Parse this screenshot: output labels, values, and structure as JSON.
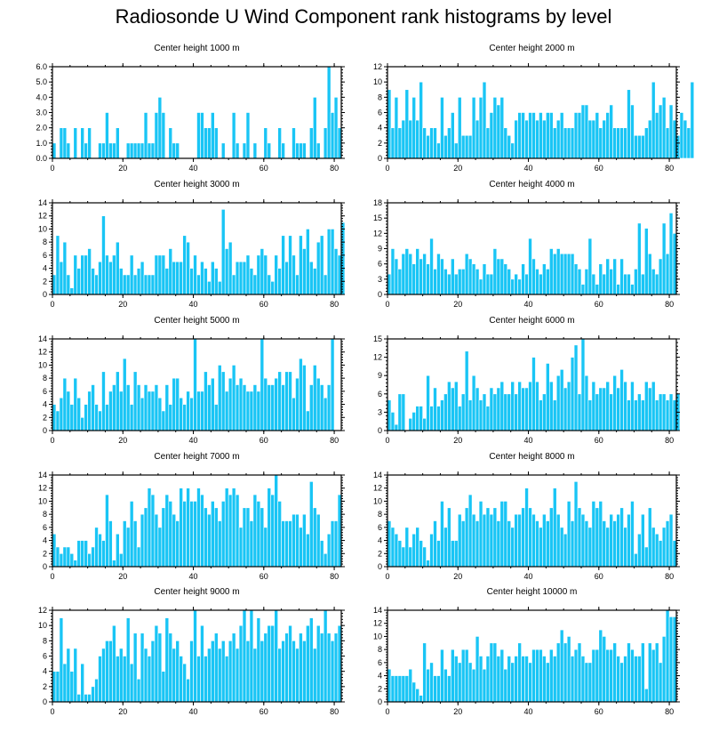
{
  "title": "Radiosonde U Wind Component rank histograms by level",
  "colors": {
    "bar": "#19c5f5",
    "axis": "#000000",
    "background": "#ffffff"
  },
  "chart_data": [
    {
      "type": "bar",
      "title": "Center height 1000 m",
      "xlim": [
        0,
        82
      ],
      "ylim": [
        0,
        6
      ],
      "yticks": [
        0,
        1,
        2,
        3,
        4,
        5,
        6
      ],
      "ytick_labels": [
        "0.0",
        "1.0",
        "2.0",
        "3.0",
        "4.0",
        "5.0",
        "6.0"
      ],
      "xticks": [
        0,
        20,
        40,
        60,
        80
      ],
      "xtick_labels": [
        "0",
        "20",
        "40",
        "60",
        "80"
      ],
      "values": [
        1,
        0,
        2,
        2,
        1,
        0,
        2,
        0,
        2,
        1,
        2,
        0,
        0,
        1,
        1,
        3,
        1,
        1,
        2,
        0,
        0,
        1,
        1,
        1,
        1,
        1,
        3,
        1,
        1,
        3,
        4,
        3,
        0,
        2,
        1,
        1,
        0,
        0,
        0,
        0,
        0,
        3,
        3,
        2,
        2,
        3,
        2,
        0,
        1,
        0,
        0,
        3,
        1,
        0,
        1,
        3,
        0,
        1,
        0,
        0,
        2,
        1,
        0,
        0,
        2,
        1,
        0,
        0,
        2,
        1,
        1,
        1,
        0,
        2,
        4,
        1,
        0,
        2,
        6,
        3,
        4,
        2
      ]
    },
    {
      "type": "bar",
      "title": "Center height 2000 m",
      "xlim": [
        0,
        82
      ],
      "ylim": [
        0,
        12
      ],
      "yticks": [
        0,
        2,
        4,
        6,
        8,
        10,
        12
      ],
      "ytick_labels": [
        "0",
        "2",
        "4",
        "6",
        "8",
        "10",
        "12"
      ],
      "xticks": [
        0,
        20,
        40,
        60,
        80
      ],
      "xtick_labels": [
        "0",
        "20",
        "40",
        "60",
        "80"
      ],
      "values": [
        9,
        4,
        8,
        4,
        5,
        9,
        5,
        8,
        5,
        10,
        4,
        3,
        4,
        4,
        2,
        8,
        3,
        4,
        6,
        2,
        8,
        3,
        3,
        3,
        8,
        5,
        8,
        10,
        4,
        6,
        8,
        7,
        8,
        4,
        3,
        2,
        5,
        6,
        6,
        5,
        6,
        6,
        5,
        6,
        5,
        6,
        6,
        4,
        5,
        6,
        4,
        4,
        4,
        6,
        6,
        7,
        7,
        5,
        5,
        6,
        4,
        5,
        6,
        7,
        4,
        4,
        4,
        4,
        9,
        7,
        3,
        3,
        3,
        4,
        5,
        10,
        6,
        7,
        8,
        4,
        7,
        5,
        3,
        6,
        5,
        4,
        10
      ]
    },
    {
      "type": "bar",
      "title": "Center height 3000 m",
      "xlim": [
        0,
        82
      ],
      "ylim": [
        0,
        14
      ],
      "yticks": [
        0,
        2,
        4,
        6,
        8,
        10,
        12,
        14
      ],
      "ytick_labels": [
        "0",
        "2",
        "4",
        "6",
        "8",
        "10",
        "12",
        "14"
      ],
      "xticks": [
        0,
        20,
        40,
        60,
        80
      ],
      "xtick_labels": [
        "0",
        "20",
        "40",
        "60",
        "80"
      ],
      "values": [
        3,
        9,
        5,
        8,
        3,
        1,
        6,
        4,
        6,
        6,
        7,
        4,
        3,
        5,
        12,
        6,
        5,
        6,
        8,
        4,
        3,
        3,
        6,
        3,
        4,
        5,
        3,
        3,
        3,
        6,
        6,
        6,
        4,
        7,
        5,
        5,
        5,
        9,
        8,
        4,
        6,
        3,
        5,
        4,
        2,
        5,
        4,
        2,
        13,
        7,
        8,
        3,
        5,
        5,
        5,
        6,
        4,
        3,
        6,
        7,
        6,
        3,
        2,
        6,
        4,
        9,
        5,
        9,
        6,
        3,
        9,
        7,
        10,
        5,
        4,
        8,
        9,
        3,
        10,
        10,
        7,
        6,
        11
      ]
    },
    {
      "type": "bar",
      "title": "Center height 4000 m",
      "xlim": [
        0,
        82
      ],
      "ylim": [
        0,
        18
      ],
      "yticks": [
        0,
        3,
        6,
        9,
        12,
        15,
        18
      ],
      "ytick_labels": [
        "0",
        "3",
        "6",
        "9",
        "12",
        "15",
        "18"
      ],
      "xticks": [
        0,
        20,
        40,
        60,
        80
      ],
      "xtick_labels": [
        "0",
        "20",
        "40",
        "60",
        "80"
      ],
      "values": [
        4,
        9,
        7,
        5,
        8,
        9,
        8,
        6,
        9,
        7,
        8,
        6,
        11,
        5,
        8,
        7,
        5,
        4,
        7,
        4,
        5,
        5,
        8,
        7,
        6,
        5,
        3,
        6,
        4,
        4,
        9,
        7,
        7,
        6,
        5,
        3,
        4,
        3,
        6,
        4,
        11,
        7,
        5,
        4,
        6,
        5,
        9,
        8,
        9,
        8,
        8,
        8,
        8,
        6,
        5,
        2,
        5,
        11,
        4,
        2,
        6,
        4,
        7,
        5,
        7,
        2,
        7,
        4,
        4,
        2,
        5,
        14,
        4,
        13,
        8,
        5,
        4,
        7,
        14,
        8,
        16,
        12
      ]
    },
    {
      "type": "bar",
      "title": "Center height 5000 m",
      "xlim": [
        0,
        82
      ],
      "ylim": [
        0,
        14
      ],
      "yticks": [
        0,
        2,
        4,
        6,
        8,
        10,
        12,
        14
      ],
      "ytick_labels": [
        "0",
        "2",
        "4",
        "6",
        "8",
        "10",
        "12",
        "14"
      ],
      "xticks": [
        0,
        20,
        40,
        60,
        80
      ],
      "xtick_labels": [
        "0",
        "20",
        "40",
        "60",
        "80"
      ],
      "values": [
        4,
        3,
        5,
        8,
        6,
        4,
        8,
        5,
        2,
        4,
        6,
        7,
        4,
        3,
        9,
        4,
        6,
        7,
        9,
        6,
        11,
        7,
        4,
        9,
        7,
        5,
        7,
        6,
        6,
        7,
        5,
        3,
        7,
        4,
        8,
        8,
        5,
        4,
        6,
        5,
        14,
        6,
        6,
        9,
        7,
        8,
        4,
        10,
        9,
        6,
        8,
        10,
        7,
        8,
        7,
        6,
        6,
        7,
        6,
        14,
        8,
        7,
        7,
        8,
        9,
        7,
        9,
        9,
        5,
        8,
        11,
        10,
        3,
        7,
        10,
        8,
        7,
        5,
        7,
        14
      ]
    },
    {
      "type": "bar",
      "title": "Center height 6000 m",
      "xlim": [
        0,
        82
      ],
      "ylim": [
        0,
        15
      ],
      "yticks": [
        0,
        3,
        6,
        9,
        12,
        15
      ],
      "ytick_labels": [
        "0",
        "3",
        "6",
        "9",
        "12",
        "15"
      ],
      "xticks": [
        0,
        20,
        40,
        60,
        80
      ],
      "xtick_labels": [
        "0",
        "20",
        "40",
        "60",
        "80"
      ],
      "values": [
        5,
        3,
        1,
        6,
        6,
        0,
        2,
        3,
        4,
        4,
        2,
        9,
        4,
        7,
        4,
        5,
        6,
        8,
        7,
        8,
        4,
        6,
        13,
        5,
        9,
        7,
        5,
        6,
        4,
        7,
        6,
        7,
        8,
        6,
        6,
        8,
        6,
        8,
        7,
        7,
        8,
        12,
        8,
        5,
        6,
        11,
        8,
        5,
        9,
        10,
        7,
        8,
        12,
        14,
        6,
        15,
        9,
        5,
        8,
        6,
        7,
        7,
        8,
        6,
        9,
        7,
        10,
        8,
        5,
        8,
        5,
        6,
        5,
        8,
        7,
        8,
        5,
        6,
        6,
        5,
        6,
        5,
        6
      ]
    },
    {
      "type": "bar",
      "title": "Center height 7000 m",
      "xlim": [
        0,
        82
      ],
      "ylim": [
        0,
        14
      ],
      "yticks": [
        0,
        2,
        4,
        6,
        8,
        10,
        12,
        14
      ],
      "ytick_labels": [
        "0",
        "2",
        "4",
        "6",
        "8",
        "10",
        "12",
        "14"
      ],
      "xticks": [
        0,
        20,
        40,
        60,
        80
      ],
      "xtick_labels": [
        "0",
        "20",
        "40",
        "60",
        "80"
      ],
      "values": [
        5,
        3,
        2,
        3,
        3,
        2,
        1,
        4,
        4,
        4,
        2,
        3,
        6,
        5,
        4,
        11,
        7,
        1,
        5,
        2,
        7,
        6,
        10,
        7,
        3,
        8,
        9,
        12,
        11,
        8,
        6,
        9,
        11,
        10,
        8,
        7,
        12,
        10,
        12,
        10,
        10,
        12,
        11,
        9,
        8,
        10,
        9,
        7,
        10,
        12,
        11,
        12,
        11,
        6,
        9,
        9,
        7,
        11,
        10,
        9,
        6,
        12,
        11,
        14,
        10,
        7,
        7,
        7,
        8,
        8,
        6,
        8,
        5,
        13,
        9,
        8,
        4,
        2,
        5,
        7,
        7,
        11
      ]
    },
    {
      "type": "bar",
      "title": "Center height 8000 m",
      "xlim": [
        0,
        82
      ],
      "ylim": [
        0,
        14
      ],
      "yticks": [
        0,
        2,
        4,
        6,
        8,
        10,
        12,
        14
      ],
      "ytick_labels": [
        "0",
        "2",
        "4",
        "6",
        "8",
        "10",
        "12",
        "14"
      ],
      "xticks": [
        0,
        20,
        40,
        60,
        80
      ],
      "xtick_labels": [
        "0",
        "20",
        "40",
        "60",
        "80"
      ],
      "values": [
        7,
        6,
        5,
        4,
        3,
        6,
        3,
        5,
        6,
        4,
        3,
        1,
        5,
        7,
        4,
        10,
        6,
        9,
        4,
        4,
        8,
        7,
        9,
        11,
        8,
        7,
        10,
        8,
        9,
        8,
        9,
        7,
        10,
        10,
        7,
        6,
        8,
        8,
        9,
        12,
        9,
        8,
        7,
        6,
        8,
        7,
        9,
        12,
        8,
        6,
        5,
        10,
        7,
        13,
        9,
        8,
        7,
        6,
        10,
        9,
        10,
        7,
        6,
        8,
        7,
        8,
        9,
        6,
        8,
        10,
        2,
        5,
        8,
        3,
        9,
        6,
        5,
        4,
        6,
        7,
        8,
        4
      ]
    },
    {
      "type": "bar",
      "title": "Center height 9000 m",
      "xlim": [
        0,
        82
      ],
      "ylim": [
        0,
        12
      ],
      "yticks": [
        0,
        2,
        4,
        6,
        8,
        10,
        12
      ],
      "ytick_labels": [
        "0",
        "2",
        "4",
        "6",
        "8",
        "10",
        "12"
      ],
      "xticks": [
        0,
        20,
        40,
        60,
        80
      ],
      "xtick_labels": [
        "0",
        "20",
        "40",
        "60",
        "80"
      ],
      "values": [
        4,
        4,
        11,
        5,
        7,
        4,
        7,
        1,
        5,
        1,
        1,
        2,
        3,
        6,
        7,
        8,
        8,
        10,
        6,
        7,
        6,
        11,
        5,
        9,
        3,
        9,
        7,
        6,
        8,
        10,
        9,
        4,
        11,
        9,
        7,
        8,
        6,
        5,
        3,
        8,
        12,
        6,
        10,
        6,
        7,
        8,
        9,
        7,
        8,
        6,
        8,
        9,
        7,
        10,
        12,
        8,
        12,
        7,
        11,
        8,
        9,
        10,
        10,
        12,
        7,
        8,
        9,
        10,
        8,
        7,
        9,
        8,
        10,
        11,
        7,
        10,
        9,
        12,
        9,
        8,
        9,
        10
      ]
    },
    {
      "type": "bar",
      "title": "Center height 10000 m",
      "xlim": [
        0,
        82
      ],
      "ylim": [
        0,
        14
      ],
      "yticks": [
        0,
        2,
        4,
        6,
        8,
        10,
        12,
        14
      ],
      "ytick_labels": [
        "0",
        "2",
        "4",
        "6",
        "8",
        "10",
        "12",
        "14"
      ],
      "xticks": [
        0,
        20,
        40,
        60,
        80
      ],
      "xtick_labels": [
        "0",
        "20",
        "40",
        "60",
        "80"
      ],
      "values": [
        5,
        4,
        4,
        4,
        4,
        4,
        5,
        3,
        2,
        1,
        9,
        5,
        6,
        4,
        4,
        8,
        5,
        4,
        8,
        7,
        6,
        8,
        8,
        6,
        5,
        10,
        7,
        5,
        7,
        9,
        9,
        7,
        8,
        5,
        7,
        6,
        7,
        9,
        7,
        7,
        6,
        8,
        8,
        8,
        7,
        6,
        8,
        7,
        9,
        11,
        9,
        10,
        7,
        8,
        9,
        7,
        6,
        6,
        8,
        8,
        11,
        10,
        8,
        8,
        9,
        7,
        6,
        7,
        9,
        8,
        7,
        7,
        9,
        2,
        9,
        8,
        9,
        6,
        10,
        14,
        13,
        13
      ]
    }
  ]
}
